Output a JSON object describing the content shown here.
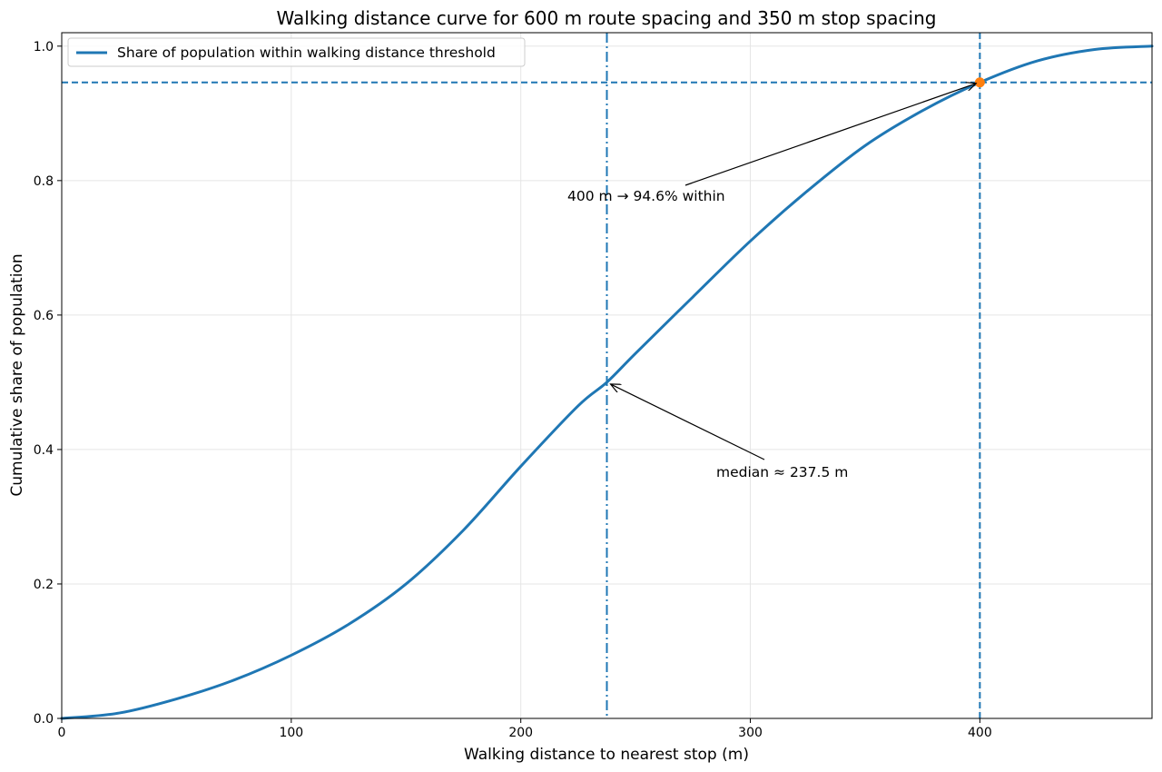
{
  "chart_data": {
    "type": "line",
    "title": "Walking distance curve for 600 m route spacing and 350 m stop spacing",
    "xlabel": "Walking distance to nearest stop (m)",
    "ylabel": "Cumulative share of population",
    "xlim": [
      0,
      475
    ],
    "ylim": [
      0,
      1.02
    ],
    "xticks": [
      0,
      100,
      200,
      300,
      400
    ],
    "yticks": [
      0.0,
      0.2,
      0.4,
      0.6,
      0.8,
      1.0
    ],
    "xtick_labels": [
      "0",
      "100",
      "200",
      "300",
      "400"
    ],
    "ytick_labels": [
      "0.0",
      "0.2",
      "0.4",
      "0.6",
      "0.8",
      "1.0"
    ],
    "grid": true,
    "legend_position": "top-left",
    "series": [
      {
        "name": "Share of population within walking distance threshold",
        "color": "#1f77b4",
        "x": [
          0,
          25,
          50,
          75,
          100,
          125,
          150,
          175,
          200,
          225,
          237.5,
          250,
          275,
          300,
          325,
          350,
          375,
          400,
          425,
          450,
          475
        ],
        "y": [
          0.0,
          0.008,
          0.029,
          0.057,
          0.094,
          0.14,
          0.2,
          0.28,
          0.375,
          0.465,
          0.5,
          0.543,
          0.627,
          0.71,
          0.785,
          0.852,
          0.904,
          0.946,
          0.978,
          0.995,
          1.0
        ]
      }
    ],
    "reference_lines": {
      "median_x": 237.5,
      "threshold_x": 400,
      "threshold_y": 0.946,
      "color": "#1f77b4"
    },
    "highlight_point": {
      "x": 400,
      "y": 0.946,
      "color": "#ff7f0e"
    },
    "annotations": [
      {
        "text": "400 m → 94.6% within",
        "target_x": 400,
        "target_y": 0.946
      },
      {
        "text": "median ≈ 237.5 m",
        "target_x": 237.5,
        "target_y": 0.5
      }
    ]
  }
}
